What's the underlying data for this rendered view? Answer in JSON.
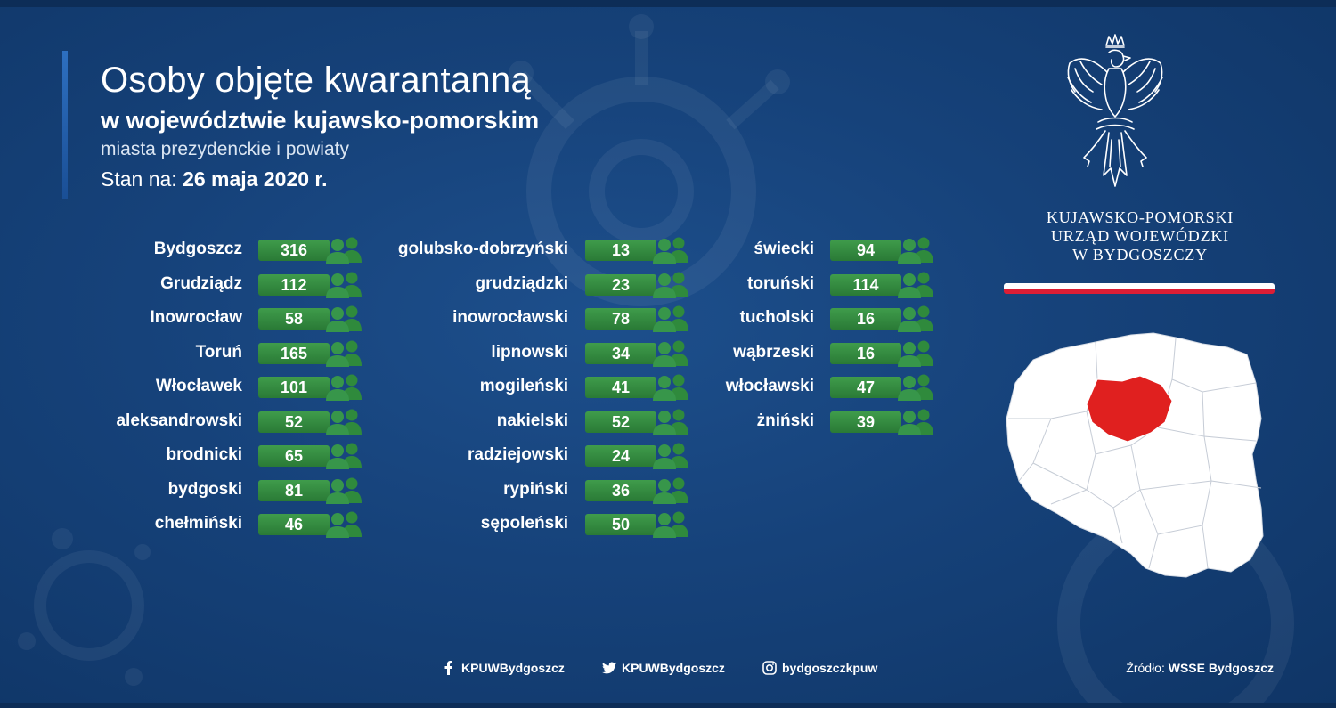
{
  "header": {
    "title": "Osoby objęte kwarantanną",
    "subtitle": "w województwie kujawsko-pomorskim",
    "description": "miasta prezydenckie i powiaty",
    "date_prefix": "Stan na:",
    "date_value": "26 maja 2020 r."
  },
  "office": {
    "line1": "KUJAWSKO-POMORSKI",
    "line2": "URZĄD WOJEWÓDZKI",
    "line3": "W BYDGOSZCZY"
  },
  "colors": {
    "background": "#16427a",
    "pill_green": "#3a9446",
    "people_icon": "#2f8a3c",
    "region_highlight": "#e0201f",
    "flag_red": "#dc1e35"
  },
  "columns": [
    [
      {
        "name": "Bydgoszcz",
        "value": "316"
      },
      {
        "name": "Grudziądz",
        "value": "112"
      },
      {
        "name": "Inowrocław",
        "value": "58"
      },
      {
        "name": "Toruń",
        "value": "165"
      },
      {
        "name": "Włocławek",
        "value": "101"
      },
      {
        "name": "aleksandrowski",
        "value": "52"
      },
      {
        "name": "brodnicki",
        "value": "65"
      },
      {
        "name": "bydgoski",
        "value": "81"
      },
      {
        "name": "chełmiński",
        "value": "46"
      }
    ],
    [
      {
        "name": "golubsko-dobrzyński",
        "value": "13"
      },
      {
        "name": "grudziądzki",
        "value": "23"
      },
      {
        "name": "inowrocławski",
        "value": "78"
      },
      {
        "name": "lipnowski",
        "value": "34"
      },
      {
        "name": "mogileński",
        "value": "41"
      },
      {
        "name": "nakielski",
        "value": "52"
      },
      {
        "name": "radziejowski",
        "value": "24"
      },
      {
        "name": "rypiński",
        "value": "36"
      },
      {
        "name": "sępoleński",
        "value": "50"
      }
    ],
    [
      {
        "name": "świecki",
        "value": "94"
      },
      {
        "name": "toruński",
        "value": "114"
      },
      {
        "name": "tucholski",
        "value": "16"
      },
      {
        "name": "wąbrzeski",
        "value": "16"
      },
      {
        "name": "włocławski",
        "value": "47"
      },
      {
        "name": "żniński",
        "value": "39"
      }
    ]
  ],
  "footer": {
    "facebook": "KPUWBydgoszcz",
    "twitter": "KPUWBydgoszcz",
    "instagram": "bydgoszczkpuw",
    "source_prefix": "Źródło:",
    "source_value": "WSSE Bydgoszcz"
  }
}
